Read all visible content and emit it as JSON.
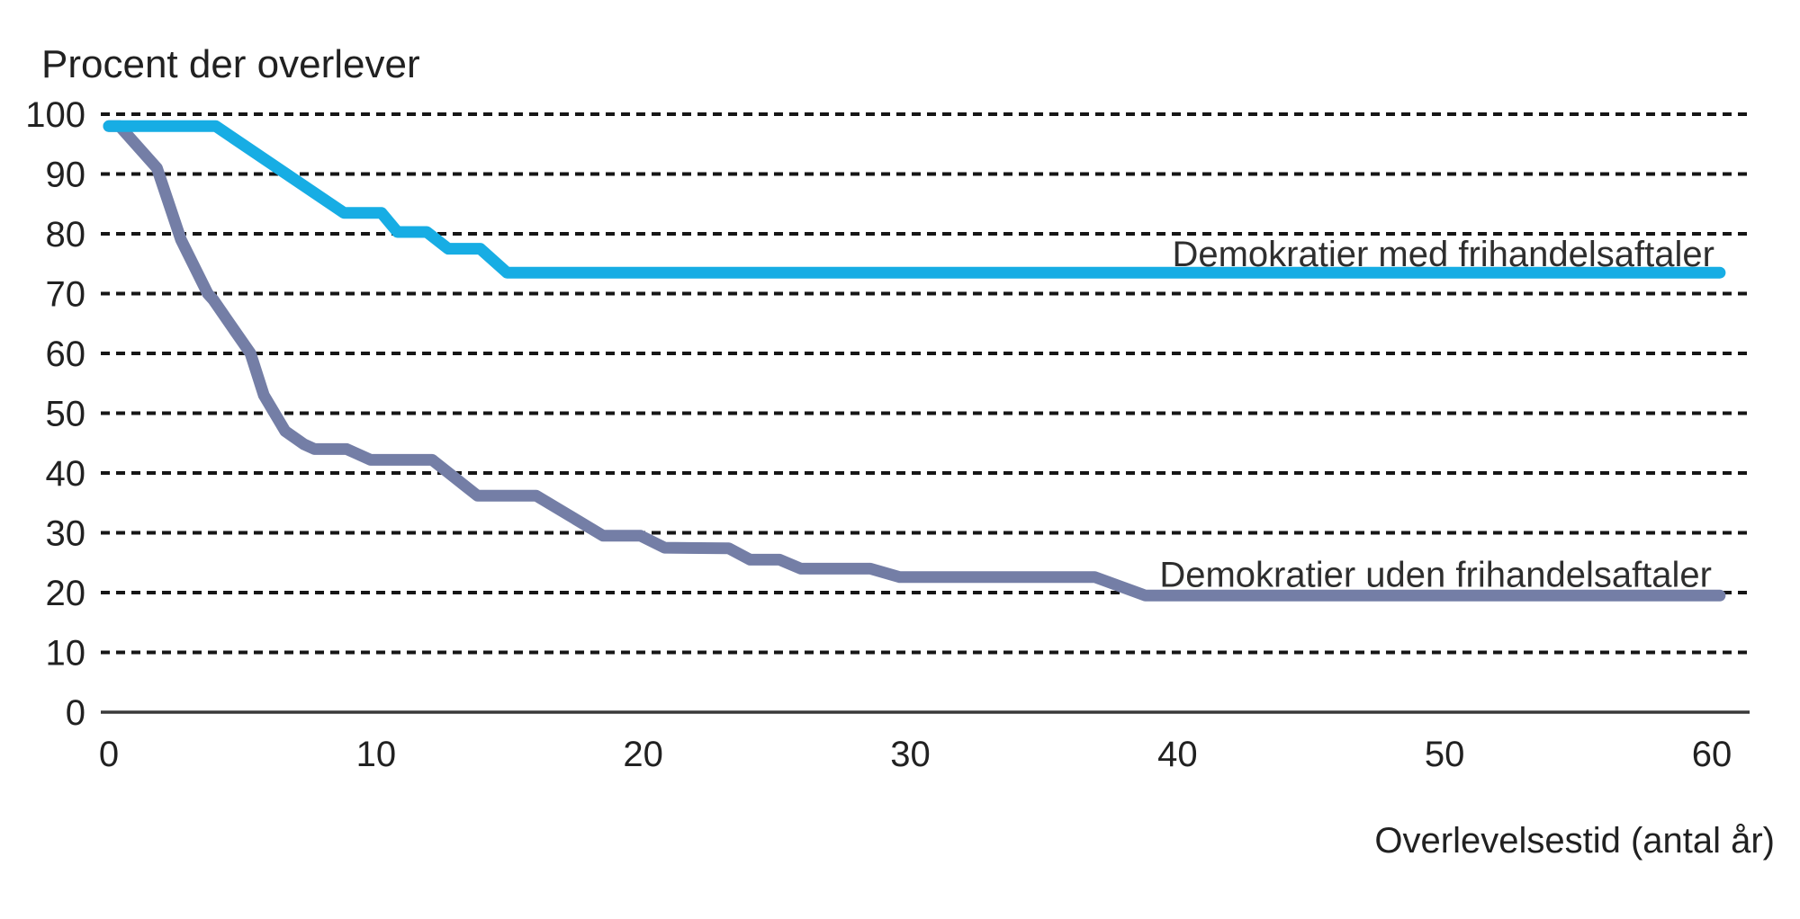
{
  "title": "Procent der overlever",
  "x_axis_label": "Overlevelsestid (antal år)",
  "colors": {
    "series_med": "#17ade4",
    "series_uden": "#747ea6",
    "grid": "#161616",
    "axis": "#3a3a3a",
    "text": "#212121",
    "background": "#ffffff"
  },
  "chart_data": {
    "type": "line",
    "title": "Procent der overlever",
    "xlabel": "Overlevelsestid (antal år)",
    "ylabel": "Procent der overlever",
    "xlim": [
      0,
      60
    ],
    "ylim": [
      0,
      100
    ],
    "x_ticks": [
      0,
      10,
      20,
      30,
      40,
      50,
      60
    ],
    "y_ticks": [
      0,
      10,
      20,
      30,
      40,
      50,
      60,
      70,
      80,
      90,
      100
    ],
    "grid": "horizontal dotted lines, solid baseline at 0",
    "legend_position": "inline labels at right side of lines",
    "series": [
      {
        "name": "Demokratier uden frihandelsaftaler",
        "color": "#747ea6",
        "label_at": {
          "x": 60.0,
          "y": 21.0
        },
        "points": [
          [
            0,
            98
          ],
          [
            0.4,
            98
          ],
          [
            1.8,
            91
          ],
          [
            2.7,
            79
          ],
          [
            3.7,
            70
          ],
          [
            3.9,
            69
          ],
          [
            4.6,
            64.5
          ],
          [
            5.3,
            60
          ],
          [
            5.8,
            53
          ],
          [
            6.6,
            47
          ],
          [
            7.3,
            44.8
          ],
          [
            7.7,
            44
          ],
          [
            8.9,
            44
          ],
          [
            9.8,
            42.2
          ],
          [
            12.1,
            42.2
          ],
          [
            13.8,
            36.2
          ],
          [
            16,
            36.2
          ],
          [
            18.5,
            29.5
          ],
          [
            19.9,
            29.5
          ],
          [
            20.8,
            27.5
          ],
          [
            23.2,
            27.4
          ],
          [
            24,
            25.5
          ],
          [
            25.1,
            25.5
          ],
          [
            25.9,
            24
          ],
          [
            28.5,
            24
          ],
          [
            29.6,
            22.6
          ],
          [
            36.9,
            22.6
          ],
          [
            38.8,
            19.5
          ],
          [
            60.3,
            19.5
          ]
        ]
      },
      {
        "name": "Demokratier med frihandelsaftaler",
        "color": "#17ade4",
        "label_at": {
          "x": 60.1,
          "y": 74.6
        },
        "points": [
          [
            0,
            98
          ],
          [
            4,
            98
          ],
          [
            8.8,
            83.5
          ],
          [
            10.2,
            83.5
          ],
          [
            10.8,
            80.3
          ],
          [
            11.9,
            80.3
          ],
          [
            12.7,
            77.5
          ],
          [
            13.9,
            77.5
          ],
          [
            14.9,
            73.5
          ],
          [
            60.3,
            73.5
          ]
        ]
      }
    ]
  }
}
